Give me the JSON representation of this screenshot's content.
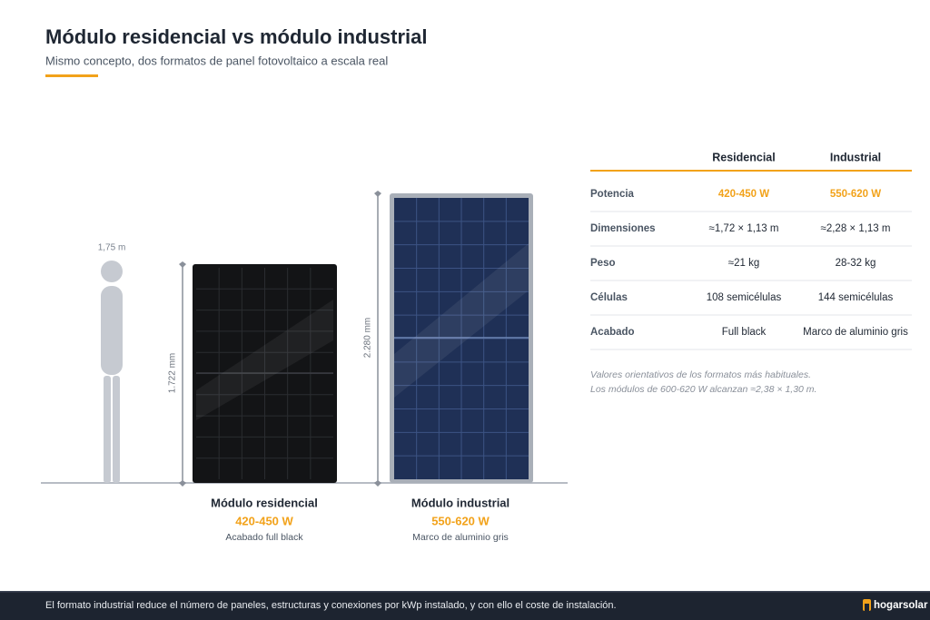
{
  "header": {
    "title": "Módulo residencial vs módulo industrial",
    "subtitle": "Mismo concepto, dos formatos de panel fotovoltaico a escala real"
  },
  "figure": {
    "person_label": "1,75 m",
    "residential": {
      "dimension": "1.722 mm",
      "name": "Módulo residencial",
      "power": "420-450 W",
      "finish": "Acabado full black"
    },
    "industrial": {
      "dimension": "2.280 mm",
      "name": "Módulo industrial",
      "power": "550-620 W",
      "finish": "Marco de aluminio gris"
    }
  },
  "table": {
    "headers": [
      "Residencial",
      "Industrial"
    ],
    "rows": [
      [
        "Potencia",
        "420-450 W",
        "550-620 W"
      ],
      [
        "Dimensiones",
        "≈1,72 × 1,13 m",
        "≈2,28 × 1,13 m"
      ],
      [
        "Peso",
        "≈21 kg",
        "28-32 kg"
      ],
      [
        "Células",
        "108 semicélulas",
        "144 semicélulas"
      ],
      [
        "Acabado",
        "Full black",
        "Marco de aluminio gris"
      ]
    ]
  },
  "notes": [
    "Valores orientativos de los formatos más habituales.",
    "Los módulos de 600-620 W alcanzan ≈2,38 × 1,30 m."
  ],
  "footer": {
    "text": "El formato industrial reduce el número de paneles, estructuras y conexiones por kWp instalado, y con ello el coste de instalación.",
    "brand": "hogarsolar"
  }
}
